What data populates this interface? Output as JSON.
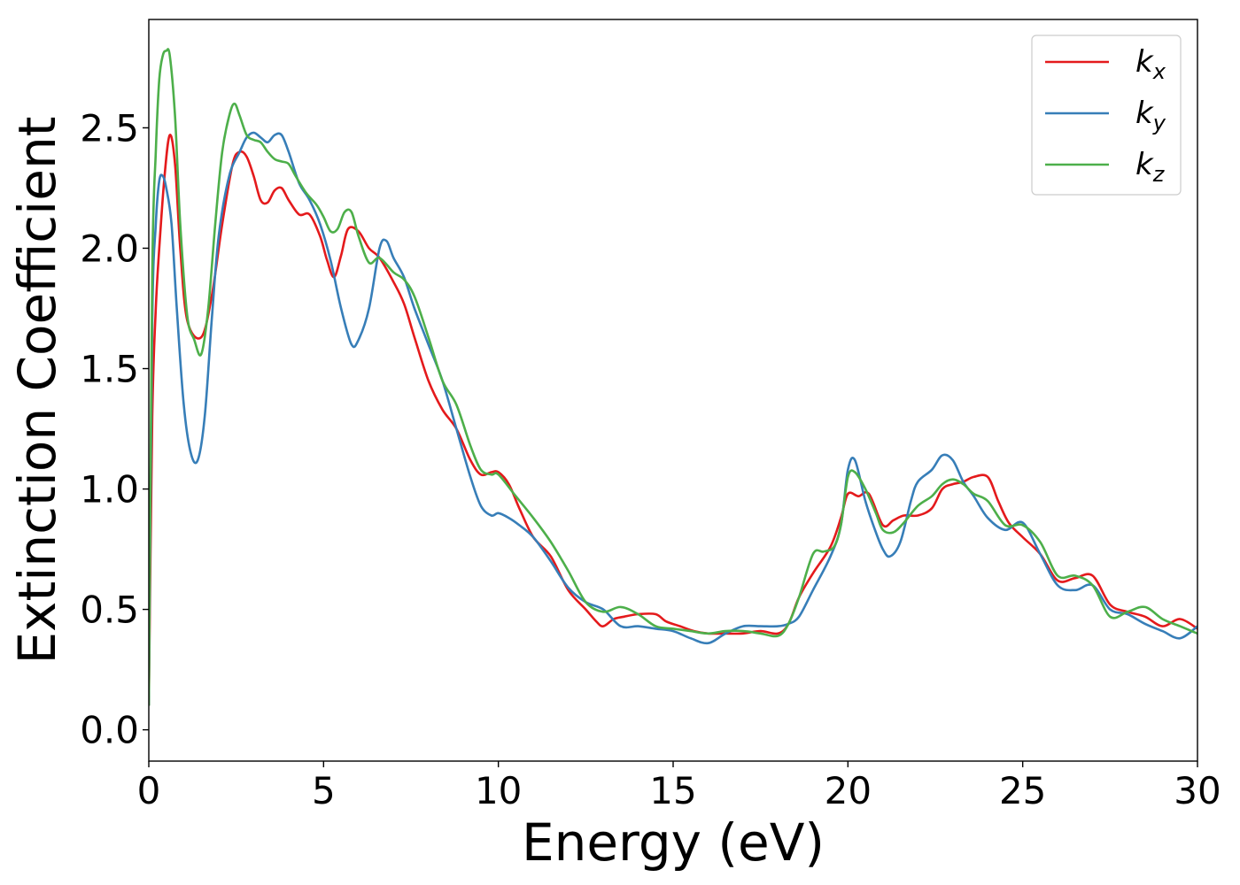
{
  "chart_data": {
    "type": "line",
    "xlabel": "Energy (eV)",
    "ylabel": "Extinction Coefficient",
    "xlim": [
      0,
      30
    ],
    "ylim": [
      -0.13,
      2.95
    ],
    "xticks": [
      "0",
      "5",
      "10",
      "15",
      "20",
      "25",
      "30"
    ],
    "xtick_values": [
      0,
      5,
      10,
      15,
      20,
      25,
      30
    ],
    "yticks": [
      "0.0",
      "0.5",
      "1.0",
      "1.5",
      "2.0",
      "2.5"
    ],
    "ytick_values": [
      0.0,
      0.5,
      1.0,
      1.5,
      2.0,
      2.5
    ],
    "grid": false,
    "legend_position": "top-right",
    "series": [
      {
        "name": "k_x",
        "label_base": "k",
        "label_sub": "x",
        "color": "#e41a1c",
        "x": [
          0,
          0.1,
          0.2,
          0.3,
          0.45,
          0.6,
          0.75,
          0.9,
          1.1,
          1.5,
          1.8,
          2.1,
          2.4,
          2.6,
          2.8,
          3.0,
          3.2,
          3.4,
          3.6,
          3.8,
          4.0,
          4.3,
          4.6,
          4.9,
          5.1,
          5.3,
          5.5,
          5.7,
          6.0,
          6.3,
          6.6,
          7.0,
          7.3,
          7.6,
          8.0,
          8.4,
          8.8,
          9.2,
          9.5,
          9.8,
          10.0,
          10.3,
          10.6,
          11.0,
          11.5,
          12.0,
          12.5,
          12.8,
          13.0,
          13.3,
          13.6,
          14.0,
          14.5,
          14.8,
          15.2,
          15.6,
          16.0,
          16.5,
          17.0,
          17.5,
          18.0,
          18.3,
          18.6,
          19.0,
          19.5,
          19.8,
          20.0,
          20.3,
          20.6,
          21.0,
          21.3,
          21.6,
          22.0,
          22.4,
          22.7,
          23.0,
          23.3,
          23.6,
          24.0,
          24.3,
          24.6,
          25.0,
          25.5,
          26.0,
          26.5,
          27.0,
          27.5,
          28.0,
          28.5,
          29.0,
          29.5,
          30.0
        ],
        "y": [
          0.1,
          1.3,
          1.75,
          2.0,
          2.3,
          2.47,
          2.35,
          2.0,
          1.7,
          1.63,
          1.8,
          2.1,
          2.35,
          2.4,
          2.38,
          2.3,
          2.2,
          2.19,
          2.24,
          2.25,
          2.2,
          2.14,
          2.14,
          2.05,
          1.95,
          1.88,
          1.97,
          2.08,
          2.07,
          2.0,
          1.96,
          1.86,
          1.77,
          1.63,
          1.45,
          1.33,
          1.25,
          1.12,
          1.06,
          1.07,
          1.07,
          1.02,
          0.92,
          0.8,
          0.72,
          0.58,
          0.5,
          0.45,
          0.43,
          0.46,
          0.47,
          0.48,
          0.48,
          0.45,
          0.43,
          0.41,
          0.4,
          0.4,
          0.4,
          0.41,
          0.4,
          0.44,
          0.55,
          0.65,
          0.76,
          0.88,
          0.98,
          0.97,
          0.98,
          0.85,
          0.87,
          0.89,
          0.89,
          0.92,
          1.0,
          1.02,
          1.03,
          1.05,
          1.05,
          0.95,
          0.86,
          0.8,
          0.73,
          0.62,
          0.63,
          0.64,
          0.52,
          0.49,
          0.47,
          0.43,
          0.46,
          0.42
        ]
      },
      {
        "name": "k_y",
        "label_base": "k",
        "label_sub": "y",
        "color": "#377eb8",
        "x": [
          0,
          0.1,
          0.2,
          0.3,
          0.4,
          0.5,
          0.65,
          0.8,
          1.0,
          1.2,
          1.4,
          1.6,
          1.8,
          2.0,
          2.3,
          2.6,
          2.8,
          3.0,
          3.2,
          3.4,
          3.6,
          3.8,
          4.0,
          4.3,
          4.6,
          4.9,
          5.2,
          5.5,
          5.8,
          6.0,
          6.3,
          6.6,
          6.8,
          7.0,
          7.3,
          7.6,
          8.0,
          8.4,
          8.8,
          9.2,
          9.5,
          9.8,
          10.0,
          10.3,
          10.6,
          11.0,
          11.5,
          12.0,
          12.5,
          13.0,
          13.5,
          14.0,
          14.5,
          15.0,
          15.5,
          16.0,
          16.5,
          17.0,
          17.5,
          18.0,
          18.3,
          18.6,
          19.0,
          19.5,
          19.8,
          20.0,
          20.2,
          20.5,
          20.8,
          21.0,
          21.2,
          21.5,
          21.8,
          22.0,
          22.4,
          22.7,
          23.0,
          23.3,
          23.6,
          24.0,
          24.5,
          25.0,
          25.5,
          26.0,
          26.5,
          27.0,
          27.5,
          28.0,
          28.5,
          29.0,
          29.5,
          30.0
        ],
        "y": [
          0.1,
          1.7,
          2.1,
          2.28,
          2.3,
          2.25,
          2.1,
          1.75,
          1.35,
          1.15,
          1.12,
          1.3,
          1.7,
          2.05,
          2.3,
          2.4,
          2.46,
          2.48,
          2.46,
          2.44,
          2.47,
          2.47,
          2.4,
          2.27,
          2.2,
          2.1,
          1.95,
          1.75,
          1.6,
          1.62,
          1.75,
          2.0,
          2.03,
          1.96,
          1.88,
          1.75,
          1.6,
          1.45,
          1.25,
          1.05,
          0.93,
          0.89,
          0.9,
          0.88,
          0.85,
          0.8,
          0.7,
          0.59,
          0.53,
          0.5,
          0.43,
          0.43,
          0.42,
          0.41,
          0.38,
          0.36,
          0.4,
          0.43,
          0.43,
          0.43,
          0.44,
          0.47,
          0.58,
          0.72,
          0.85,
          1.08,
          1.12,
          0.95,
          0.82,
          0.75,
          0.72,
          0.78,
          0.95,
          1.03,
          1.08,
          1.14,
          1.12,
          1.03,
          0.97,
          0.88,
          0.83,
          0.86,
          0.73,
          0.6,
          0.58,
          0.6,
          0.5,
          0.48,
          0.44,
          0.41,
          0.38,
          0.43
        ]
      },
      {
        "name": "k_z",
        "label_base": "k",
        "label_sub": "z",
        "color": "#4daf4a",
        "x": [
          0,
          0.1,
          0.2,
          0.3,
          0.4,
          0.5,
          0.6,
          0.75,
          0.9,
          1.1,
          1.3,
          1.5,
          1.7,
          1.9,
          2.1,
          2.3,
          2.45,
          2.6,
          2.8,
          3.0,
          3.2,
          3.4,
          3.6,
          3.8,
          4.0,
          4.2,
          4.5,
          4.8,
          5.0,
          5.2,
          5.4,
          5.6,
          5.8,
          6.0,
          6.3,
          6.6,
          7.0,
          7.3,
          7.6,
          8.0,
          8.4,
          8.8,
          9.2,
          9.5,
          9.8,
          10.0,
          10.5,
          11.0,
          11.5,
          12.0,
          12.5,
          13.0,
          13.5,
          14.0,
          14.5,
          15.0,
          15.5,
          16.0,
          16.5,
          17.0,
          17.5,
          18.0,
          18.3,
          18.6,
          19.0,
          19.3,
          19.6,
          19.8,
          20.0,
          20.2,
          20.5,
          20.8,
          21.0,
          21.3,
          21.6,
          22.0,
          22.4,
          22.7,
          23.0,
          23.3,
          23.6,
          24.0,
          24.5,
          25.0,
          25.5,
          26.0,
          26.5,
          27.0,
          27.5,
          28.0,
          28.5,
          29.0,
          29.5,
          30.0
        ],
        "y": [
          0.1,
          1.9,
          2.4,
          2.7,
          2.8,
          2.82,
          2.8,
          2.55,
          2.1,
          1.72,
          1.62,
          1.56,
          1.75,
          2.1,
          2.4,
          2.55,
          2.6,
          2.55,
          2.47,
          2.45,
          2.44,
          2.4,
          2.37,
          2.36,
          2.35,
          2.3,
          2.23,
          2.18,
          2.13,
          2.07,
          2.08,
          2.15,
          2.15,
          2.05,
          1.94,
          1.96,
          1.9,
          1.87,
          1.8,
          1.63,
          1.45,
          1.35,
          1.18,
          1.08,
          1.06,
          1.06,
          0.97,
          0.88,
          0.78,
          0.66,
          0.53,
          0.49,
          0.51,
          0.48,
          0.43,
          0.42,
          0.41,
          0.4,
          0.41,
          0.41,
          0.4,
          0.39,
          0.44,
          0.55,
          0.73,
          0.74,
          0.76,
          0.85,
          1.05,
          1.07,
          1.0,
          0.9,
          0.83,
          0.82,
          0.86,
          0.93,
          0.97,
          1.02,
          1.04,
          1.02,
          0.98,
          0.95,
          0.85,
          0.85,
          0.78,
          0.64,
          0.64,
          0.6,
          0.47,
          0.49,
          0.51,
          0.46,
          0.43,
          0.4
        ]
      }
    ]
  }
}
